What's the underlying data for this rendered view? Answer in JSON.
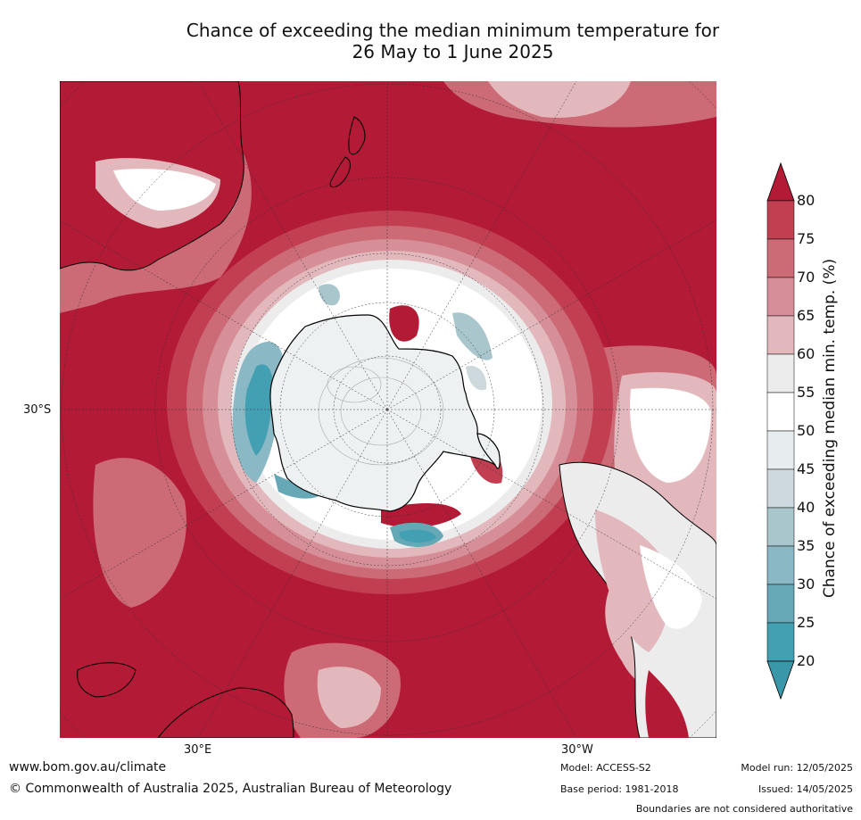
{
  "title_line1": "Chance of exceeding the median minimum temperature for",
  "title_line2": "26 May to 1 June 2025",
  "map": {
    "projection": "south-polar stereographic",
    "lat_labels": [
      "30°S"
    ],
    "lon_labels": [
      "30°E",
      "30°W"
    ],
    "colors": {
      "c80": "#b21a35",
      "c75": "#c23f52",
      "c70": "#cc6a76",
      "c65": "#d68f98",
      "c60": "#e2b8bd",
      "c55": "#ececec",
      "c50": "#ffffff",
      "c45": "#e7edef",
      "c40": "#cdd9dc",
      "c35": "#aac6cd",
      "c30": "#8ab8c4",
      "c25": "#67a8b7",
      "c20": "#43a0b2"
    }
  },
  "colorbar": {
    "title": "Chance of exceeding median min. temp. (%)",
    "ticks": [
      "80",
      "75",
      "70",
      "65",
      "60",
      "55",
      "50",
      "45",
      "40",
      "35",
      "30",
      "25",
      "20"
    ],
    "bin_colors": [
      "#b21a35",
      "#c23f52",
      "#cc6a76",
      "#d68f98",
      "#e2b8bd",
      "#ececec",
      "#ffffff",
      "#e7edef",
      "#cdd9dc",
      "#aac6cd",
      "#8ab8c4",
      "#67a8b7",
      "#43a0b2",
      "#3a97a9"
    ]
  },
  "footer": {
    "url": "www.bom.gov.au/climate",
    "copyright": "© Commonwealth of Australia 2025, Australian Bureau of Meteorology",
    "model": "Model: ACCESS-S2",
    "base_period": "Base period: 1981-2018",
    "model_run": "Model run: 12/05/2025",
    "issued": "Issued: 14/05/2025",
    "disclaimer": "Boundaries are not considered authoritative"
  }
}
